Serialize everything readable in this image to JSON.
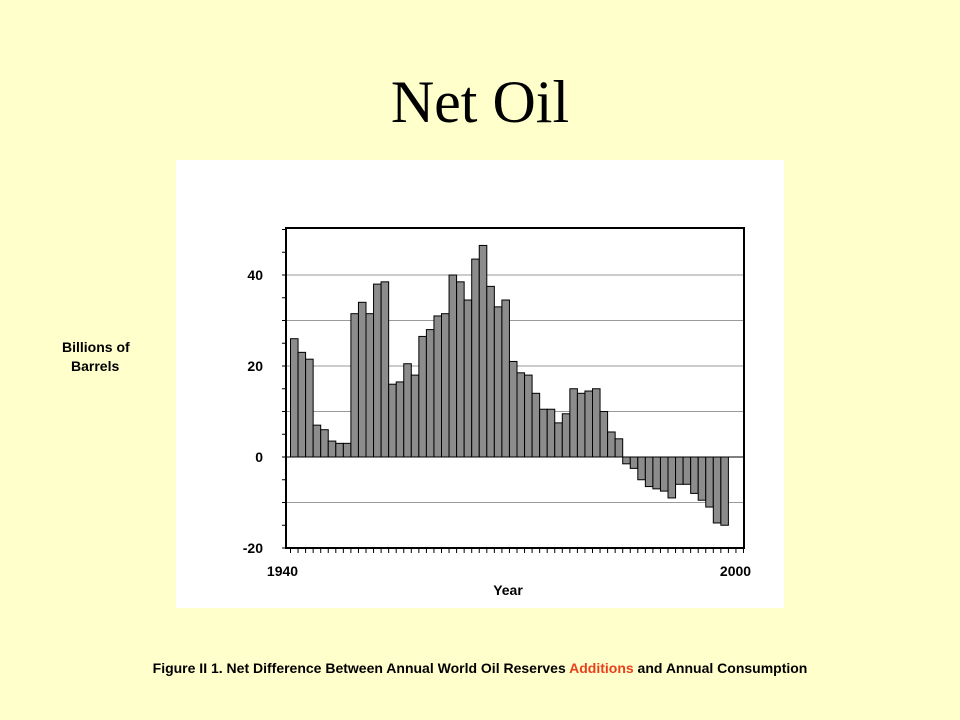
{
  "slide": {
    "title": "Net Oil"
  },
  "caption": {
    "prefix": "Figure II 1.  Net Difference Between Annual World Oil Reserves ",
    "highlight": "Additions",
    "suffix": " and Annual Consumption"
  },
  "colors": {
    "background": "#ffffcc",
    "bar_fill": "#8c8c8c",
    "caption_highlight": "#e8401c"
  },
  "chart_data": {
    "type": "bar",
    "xlabel": "Year",
    "ylabel_lines": [
      "Billions of",
      "Barrels"
    ],
    "ylim": [
      -20,
      50
    ],
    "yticks": [
      -20,
      0,
      20,
      40
    ],
    "xticks": [
      1940,
      2000
    ],
    "xlim": [
      1940,
      2005
    ],
    "grid": true,
    "series": [
      {
        "values": [
          {
            "x": 1940,
            "y": 26
          },
          {
            "x": 1941,
            "y": 23
          },
          {
            "x": 1942,
            "y": 21.5
          },
          {
            "x": 1943,
            "y": 7
          },
          {
            "x": 1944,
            "y": 6
          },
          {
            "x": 1945,
            "y": 3.5
          },
          {
            "x": 1946,
            "y": 3
          },
          {
            "x": 1947,
            "y": 3
          },
          {
            "x": 1948,
            "y": 31.5
          },
          {
            "x": 1949,
            "y": 34
          },
          {
            "x": 1950,
            "y": 31.5
          },
          {
            "x": 1951,
            "y": 38
          },
          {
            "x": 1952,
            "y": 38.5
          },
          {
            "x": 1953,
            "y": 16
          },
          {
            "x": 1954,
            "y": 16.5
          },
          {
            "x": 1955,
            "y": 20.5
          },
          {
            "x": 1956,
            "y": 18
          },
          {
            "x": 1957,
            "y": 26.5
          },
          {
            "x": 1958,
            "y": 28
          },
          {
            "x": 1959,
            "y": 31
          },
          {
            "x": 1960,
            "y": 31.5
          },
          {
            "x": 1961,
            "y": 40
          },
          {
            "x": 1962,
            "y": 38.5
          },
          {
            "x": 1963,
            "y": 34.5
          },
          {
            "x": 1964,
            "y": 43.5
          },
          {
            "x": 1965,
            "y": 46.5
          },
          {
            "x": 1966,
            "y": 37.5
          },
          {
            "x": 1967,
            "y": 33
          },
          {
            "x": 1968,
            "y": 34.5
          },
          {
            "x": 1969,
            "y": 21
          },
          {
            "x": 1970,
            "y": 18.5
          },
          {
            "x": 1971,
            "y": 18
          },
          {
            "x": 1972,
            "y": 14
          },
          {
            "x": 1973,
            "y": 10.5
          },
          {
            "x": 1974,
            "y": 10.5
          },
          {
            "x": 1975,
            "y": 7.5
          },
          {
            "x": 1976,
            "y": 9.5
          },
          {
            "x": 1977,
            "y": 15
          },
          {
            "x": 1978,
            "y": 14
          },
          {
            "x": 1979,
            "y": 14.5
          },
          {
            "x": 1980,
            "y": 15
          },
          {
            "x": 1981,
            "y": 10
          },
          {
            "x": 1982,
            "y": 5.5
          },
          {
            "x": 1983,
            "y": 4
          },
          {
            "x": 1984,
            "y": -1.5
          },
          {
            "x": 1985,
            "y": -2.5
          },
          {
            "x": 1986,
            "y": -5
          },
          {
            "x": 1987,
            "y": -6.5
          },
          {
            "x": 1988,
            "y": -7
          },
          {
            "x": 1989,
            "y": -7.5
          },
          {
            "x": 1990,
            "y": -9
          },
          {
            "x": 1991,
            "y": -6
          },
          {
            "x": 1992,
            "y": -6
          },
          {
            "x": 1993,
            "y": -8
          },
          {
            "x": 1994,
            "y": -9.5
          },
          {
            "x": 1995,
            "y": -11
          },
          {
            "x": 1996,
            "y": -14.5
          },
          {
            "x": 1997,
            "y": -15
          }
        ]
      }
    ]
  }
}
